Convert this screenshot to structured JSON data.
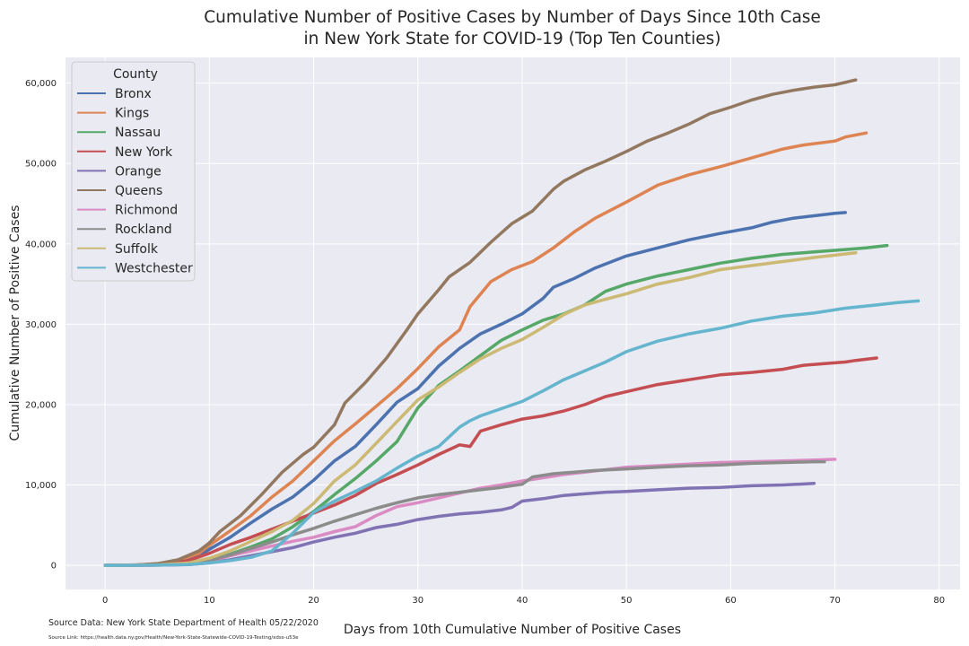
{
  "chart_data": {
    "type": "line",
    "title_lines": [
      "Cumulative Number of Positive Cases by Number of Days Since 10th Case",
      "in New York State for COVID-19 (Top Ten Counties)"
    ],
    "xlabel": "Days from 10th Cumulative Number of Positive Cases",
    "ylabel": "Cumulative Number of Positive Cases",
    "xlim": [
      -3.8,
      82
    ],
    "ylim": [
      -3000,
      63200
    ],
    "xticks": [
      0,
      10,
      20,
      30,
      40,
      50,
      60,
      70,
      80
    ],
    "yticks": [
      0,
      10000,
      20000,
      30000,
      40000,
      50000,
      60000
    ],
    "ytick_labels": [
      "0",
      "10,000",
      "20,000",
      "30,000",
      "40,000",
      "50,000",
      "60,000"
    ],
    "grid": true,
    "legend_title": "County",
    "legend_position": "top-left",
    "series": [
      {
        "name": "Bronx",
        "color": "#4c72b0",
        "x": [
          0,
          3,
          5,
          7,
          9,
          10,
          12,
          14,
          16,
          18,
          20,
          22,
          24,
          26,
          28,
          30,
          32,
          34,
          36,
          38,
          40,
          42,
          43,
          45,
          47,
          50,
          53,
          56,
          59,
          62,
          64,
          66,
          68,
          70,
          71
        ],
        "y": [
          0,
          50,
          150,
          500,
          1200,
          2000,
          3500,
          5300,
          7000,
          8500,
          10600,
          13000,
          14800,
          17500,
          20300,
          22000,
          24800,
          27000,
          28800,
          30000,
          31300,
          33200,
          34600,
          35700,
          37000,
          38500,
          39500,
          40500,
          41300,
          42000,
          42700,
          43200,
          43500,
          43800,
          43900
        ]
      },
      {
        "name": "Kings",
        "color": "#dd8452",
        "x": [
          0,
          3,
          5,
          7,
          9,
          10,
          12,
          14,
          16,
          18,
          20,
          22,
          24,
          26,
          28,
          30,
          32,
          34,
          35,
          37,
          39,
          41,
          43,
          45,
          47,
          50,
          53,
          56,
          59,
          62,
          65,
          67,
          70,
          71,
          73
        ],
        "y": [
          0,
          50,
          200,
          600,
          1500,
          2500,
          4300,
          6200,
          8500,
          10500,
          13000,
          15500,
          17600,
          19800,
          22000,
          24500,
          27200,
          29300,
          32200,
          35300,
          36800,
          37800,
          39500,
          41500,
          43200,
          45200,
          47300,
          48600,
          49600,
          50700,
          51800,
          52300,
          52800,
          53300,
          53800
        ]
      },
      {
        "name": "Nassau",
        "color": "#55a868",
        "x": [
          0,
          5,
          8,
          10,
          12,
          14,
          16,
          18,
          20,
          22,
          24,
          26,
          28,
          30,
          32,
          34,
          36,
          38,
          40,
          42,
          44,
          46,
          48,
          50,
          53,
          56,
          59,
          62,
          65,
          68,
          71,
          73,
          75
        ],
        "y": [
          0,
          50,
          200,
          600,
          1400,
          2300,
          3300,
          4800,
          6700,
          8800,
          10800,
          13000,
          15400,
          19600,
          22400,
          24200,
          26100,
          28000,
          29300,
          30500,
          31300,
          32400,
          34100,
          35000,
          36000,
          36800,
          37600,
          38200,
          38700,
          39000,
          39300,
          39500,
          39800
        ]
      },
      {
        "name": "New York",
        "color": "#c44e52",
        "x": [
          0,
          5,
          8,
          10,
          12,
          14,
          16,
          18,
          20,
          22,
          24,
          26,
          28,
          30,
          32,
          34,
          35,
          36,
          38,
          40,
          42,
          44,
          46,
          48,
          50,
          53,
          56,
          59,
          62,
          65,
          67,
          69,
          71,
          72,
          74
        ],
        "y": [
          0,
          100,
          600,
          1500,
          2600,
          3500,
          4500,
          5500,
          6500,
          7500,
          8700,
          10200,
          11300,
          12500,
          13800,
          15000,
          14800,
          16700,
          17500,
          18200,
          18600,
          19200,
          20000,
          21000,
          21600,
          22500,
          23100,
          23700,
          24000,
          24400,
          24900,
          25100,
          25300,
          25500,
          25800
        ]
      },
      {
        "name": "Orange",
        "color": "#8172b3",
        "x": [
          0,
          5,
          8,
          10,
          12,
          14,
          16,
          18,
          20,
          22,
          24,
          26,
          28,
          30,
          32,
          34,
          36,
          38,
          39,
          40,
          42,
          44,
          46,
          48,
          50,
          53,
          56,
          59,
          62,
          65,
          68
        ],
        "y": [
          0,
          20,
          100,
          300,
          700,
          1200,
          1700,
          2200,
          2900,
          3500,
          4000,
          4700,
          5100,
          5700,
          6100,
          6400,
          6600,
          6900,
          7200,
          8000,
          8300,
          8700,
          8900,
          9100,
          9200,
          9400,
          9600,
          9700,
          9900,
          10000,
          10200
        ]
      },
      {
        "name": "Queens",
        "color": "#937860",
        "x": [
          0,
          3,
          5,
          7,
          9,
          10,
          11,
          13,
          15,
          17,
          19,
          20,
          22,
          23,
          25,
          27,
          29,
          30,
          32,
          33,
          35,
          37,
          39,
          41,
          43,
          44,
          46,
          48,
          50,
          52,
          54,
          56,
          58,
          60,
          62,
          64,
          66,
          68,
          70,
          72
        ],
        "y": [
          0,
          50,
          200,
          700,
          1800,
          2800,
          4200,
          6200,
          8800,
          11600,
          13800,
          14700,
          17500,
          20200,
          22800,
          25800,
          29400,
          31300,
          34300,
          35900,
          37700,
          40200,
          42500,
          44100,
          46800,
          47800,
          49200,
          50300,
          51500,
          52800,
          53800,
          54900,
          56200,
          57000,
          57900,
          58600,
          59100,
          59500,
          59800,
          60400
        ]
      },
      {
        "name": "Richmond",
        "color": "#da8bc3",
        "x": [
          0,
          5,
          8,
          10,
          12,
          14,
          16,
          18,
          20,
          22,
          24,
          26,
          28,
          30,
          32,
          34,
          36,
          38,
          40,
          42,
          44,
          46,
          48,
          50,
          53,
          56,
          59,
          62,
          65,
          68,
          70
        ],
        "y": [
          0,
          20,
          150,
          500,
          1200,
          1800,
          2400,
          3000,
          3500,
          4200,
          4800,
          6200,
          7300,
          7800,
          8400,
          9000,
          9600,
          10000,
          10500,
          10900,
          11300,
          11600,
          11900,
          12200,
          12400,
          12600,
          12800,
          12900,
          13000,
          13100,
          13200
        ]
      },
      {
        "name": "Rockland",
        "color": "#8c8c8c",
        "x": [
          0,
          5,
          8,
          10,
          12,
          14,
          16,
          18,
          20,
          22,
          24,
          26,
          28,
          30,
          32,
          34,
          36,
          38,
          40,
          41,
          43,
          45,
          47,
          50,
          53,
          56,
          59,
          62,
          65,
          68,
          69
        ],
        "y": [
          0,
          50,
          200,
          600,
          1300,
          2100,
          2900,
          3800,
          4600,
          5500,
          6300,
          7100,
          7800,
          8400,
          8800,
          9100,
          9400,
          9700,
          10100,
          11000,
          11400,
          11600,
          11800,
          12000,
          12200,
          12400,
          12500,
          12700,
          12800,
          12900,
          12900
        ]
      },
      {
        "name": "Suffolk",
        "color": "#ccb974",
        "x": [
          0,
          5,
          8,
          10,
          12,
          14,
          16,
          18,
          20,
          22,
          24,
          26,
          28,
          30,
          32,
          34,
          36,
          38,
          40,
          42,
          44,
          46,
          48,
          50,
          53,
          56,
          59,
          62,
          65,
          68,
          70,
          72
        ],
        "y": [
          0,
          50,
          300,
          900,
          1800,
          3000,
          4200,
          5600,
          7700,
          10500,
          12500,
          15200,
          17900,
          20600,
          22200,
          24000,
          25700,
          27000,
          28100,
          29600,
          31200,
          32400,
          33100,
          33800,
          35000,
          35800,
          36800,
          37300,
          37800,
          38300,
          38600,
          38900
        ]
      },
      {
        "name": "Westchester",
        "color": "#64b5cd",
        "x": [
          0,
          5,
          8,
          10,
          12,
          14,
          16,
          18,
          20,
          22,
          24,
          26,
          28,
          30,
          32,
          34,
          35,
          36,
          38,
          40,
          42,
          44,
          46,
          48,
          50,
          53,
          56,
          59,
          62,
          65,
          68,
          71,
          74,
          76,
          78
        ],
        "y": [
          0,
          20,
          100,
          300,
          600,
          1000,
          1800,
          4000,
          6600,
          8000,
          9200,
          10500,
          12100,
          13600,
          14800,
          17200,
          18000,
          18600,
          19500,
          20400,
          21700,
          23100,
          24200,
          25300,
          26600,
          27900,
          28800,
          29500,
          30400,
          31000,
          31400,
          32000,
          32400,
          32700,
          32900
        ]
      }
    ]
  },
  "source": {
    "data_text": "Source Data: New York State Department of Health 05/22/2020",
    "link_text": "Source Link: https://health.data.ny.gov/Health/New-York-State-Statewide-COVID-19-Testing/xdss-u53e"
  }
}
